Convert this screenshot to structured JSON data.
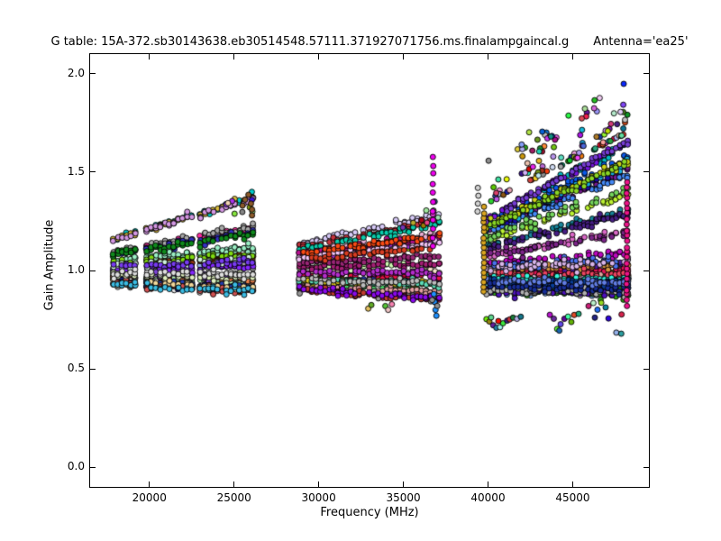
{
  "figure": {
    "title_left": "G table: 15A-372.sb30143638.eb30514548.57111.371927071756.ms.finalampgaincal.g",
    "title_right": "Antenna='ea25'",
    "background": "#ffffff",
    "foreground": "#000000"
  },
  "chart_data": {
    "type": "scatter",
    "title": "G table: 15A-372.sb30143638.eb30514548.57111.371927071756.ms.finalampgaincal.g  Antenna='ea25'",
    "xlabel": "Frequency (MHz)",
    "ylabel": "Gain Amplitude",
    "xlim": [
      16500,
      49500
    ],
    "ylim": [
      -0.1,
      2.1
    ],
    "xticks": [
      20000,
      25000,
      30000,
      35000,
      40000,
      45000
    ],
    "yticks": [
      0.0,
      0.5,
      1.0,
      1.5,
      2.0
    ],
    "grid": false,
    "legend": false,
    "tick_direction": "in",
    "tick_length": 6,
    "marker": {
      "shape": "circle",
      "radius": 3.0,
      "edge_color": "#000000",
      "edge_width": 0.9
    },
    "seed": 7,
    "x_jitter_mhz": 30,
    "clusters": [
      {
        "name": "band-18-26GHz",
        "segments": [
          [
            17880,
            19150,
            6
          ],
          [
            19850,
            22500,
            11
          ],
          [
            23000,
            26100,
            13
          ]
        ],
        "tracks": 30,
        "d_base": -0.07,
        "d_span": 0.24,
        "d_pow": 1.7,
        "amp_up": 1.35,
        "amp_dn": 0.5,
        "noise": 0.012,
        "dropout": 0.08,
        "extra_prob": 0.55,
        "halo": {
          "n": 8,
          "f0": 24500,
          "f1": 26100,
          "base0": 1.26,
          "base1": 1.3,
          "spread": 0.1,
          "pow": 2
        }
      },
      {
        "name": "band-29-37GHz",
        "segments": [
          [
            28850,
            32650,
            16
          ],
          [
            33000,
            37100,
            17
          ]
        ],
        "tracks": 26,
        "d_base": -0.11,
        "d_span": 0.25,
        "d_pow": 1.5,
        "amp_up": 1.1,
        "amp_dn": 0.5,
        "noise": 0.011,
        "dropout": 0.12,
        "extra_prob": 0.5,
        "halo": {
          "n": 10,
          "f0": 34800,
          "f1": 37100,
          "base0": 1.18,
          "base1": 1.26,
          "spread": 0.14,
          "pow": 2
        }
      },
      {
        "name": "band-40-48GHz",
        "segments": [
          [
            39900,
            43000,
            14
          ],
          [
            43350,
            48250,
            22
          ]
        ],
        "tracks": 44,
        "d_base": -0.1,
        "d_span": 0.38,
        "d_pow": 1.6,
        "amp_up": 1.5,
        "amp_dn": 0.2,
        "noise": 0.013,
        "dropout": 0.22,
        "extra_prob": 0.7,
        "halo": {
          "n": 115,
          "f0": 40000,
          "f1": 48250,
          "base0": 1.34,
          "base1": 1.7,
          "spread": 0.26,
          "pow": 2
        }
      }
    ],
    "features": [
      {
        "type": "column",
        "f": 36750,
        "a0": 1.12,
        "a1": 1.58,
        "n": 11,
        "color": "#EE00EE"
      },
      {
        "type": "column",
        "f": 39750,
        "a0": 0.89,
        "a1": 1.32,
        "n": 18,
        "color": "#DAA520"
      },
      {
        "type": "column",
        "f": 48200,
        "a0": 0.82,
        "a1": 1.45,
        "n": 24,
        "color": "#EE1289"
      },
      {
        "type": "points",
        "color": "#8B5A2B",
        "pts": [
          [
            25500,
            1.33
          ],
          [
            25650,
            1.36
          ],
          [
            25850,
            1.385
          ],
          [
            26000,
            1.34
          ],
          [
            26060,
            1.31
          ],
          [
            26060,
            1.28
          ]
        ]
      },
      {
        "type": "points",
        "color": "#D3D3D3",
        "pts": [
          [
            39400,
            1.42
          ],
          [
            39430,
            1.38
          ],
          [
            39400,
            1.34
          ],
          [
            39380,
            1.3
          ]
        ]
      },
      {
        "type": "points",
        "color": "#1E90FF",
        "pts": [
          [
            36800,
            0.88
          ],
          [
            36850,
            0.84
          ],
          [
            36900,
            0.8
          ],
          [
            36950,
            0.77
          ]
        ]
      },
      {
        "type": "points",
        "color": "#909090",
        "pts": [
          [
            37000,
            0.82
          ],
          [
            36700,
            0.85
          ]
        ]
      }
    ],
    "outlier_groups": [
      {
        "name": "low-40-42GHz",
        "pts": [
          [
            39900,
            0.755
          ],
          [
            40100,
            0.735
          ],
          [
            40300,
            0.715
          ],
          [
            40500,
            0.705
          ],
          [
            40700,
            0.715
          ],
          [
            40900,
            0.735
          ],
          [
            41100,
            0.75
          ],
          [
            41300,
            0.745
          ],
          [
            41500,
            0.76
          ],
          [
            41700,
            0.755
          ],
          [
            41950,
            0.77
          ],
          [
            40200,
            0.76
          ],
          [
            40600,
            0.74
          ]
        ]
      },
      {
        "name": "low-43-45GHz",
        "pts": [
          [
            43650,
            0.77
          ],
          [
            43900,
            0.75
          ],
          [
            44100,
            0.7
          ],
          [
            44300,
            0.72
          ],
          [
            44500,
            0.755
          ],
          [
            44700,
            0.76
          ],
          [
            44900,
            0.73
          ],
          [
            45100,
            0.775
          ],
          [
            45350,
            0.78
          ],
          [
            44200,
            0.69
          ]
        ]
      },
      {
        "name": "low-46-48GHz",
        "pts": [
          [
            45950,
            0.82
          ],
          [
            46200,
            0.84
          ],
          [
            46450,
            0.8
          ],
          [
            46700,
            0.835
          ],
          [
            46950,
            0.81
          ],
          [
            47900,
            0.78
          ],
          [
            47550,
            0.685
          ],
          [
            47850,
            0.675
          ],
          [
            46300,
            0.76
          ],
          [
            47100,
            0.755
          ]
        ]
      },
      {
        "name": "low-33-34GHz",
        "pts": [
          [
            32950,
            0.8
          ],
          [
            33080,
            0.825
          ],
          [
            33950,
            0.81
          ],
          [
            34300,
            0.83
          ],
          [
            34100,
            0.795
          ]
        ]
      }
    ]
  }
}
